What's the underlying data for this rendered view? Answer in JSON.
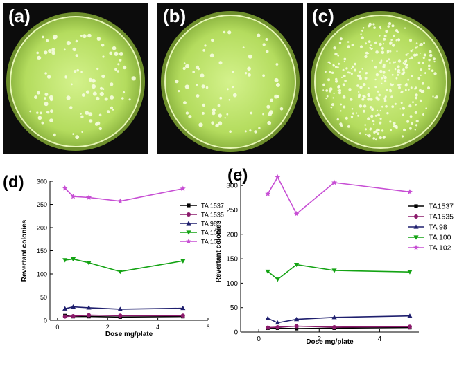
{
  "plates": [
    {
      "label": "(a)",
      "colony_density": "sparse"
    },
    {
      "label": "(b)",
      "colony_density": "sparse"
    },
    {
      "label": "(c)",
      "colony_density": "dense"
    }
  ],
  "chart_data": [
    {
      "panel_label": "(d)",
      "type": "line",
      "title": "",
      "xlabel": "Dose mg/plate",
      "ylabel": "Revertant colonies",
      "xlim": [
        -0.3,
        6
      ],
      "ylim": [
        0,
        300
      ],
      "xticks": [
        0,
        2,
        4,
        6
      ],
      "yticks": [
        0,
        50,
        100,
        150,
        200,
        250,
        300
      ],
      "grid": false,
      "legend_position": "right",
      "x": [
        0.3,
        0.625,
        1.25,
        2.5,
        5
      ],
      "series": [
        {
          "name": "TA 1537",
          "marker": "square",
          "color": "#000000",
          "values": [
            10,
            8,
            8,
            7,
            8
          ]
        },
        {
          "name": "TA 1535",
          "marker": "circle",
          "color": "#8b1a6b",
          "values": [
            8,
            9,
            11,
            10,
            10
          ]
        },
        {
          "name": "TA  98",
          "marker": "triangle-up",
          "color": "#1f1f6e",
          "values": [
            25,
            29,
            27,
            24,
            26
          ]
        },
        {
          "name": "TA  100",
          "marker": "triangle-down",
          "color": "#13a313",
          "values": [
            130,
            132,
            124,
            105,
            128
          ]
        },
        {
          "name": "TA 102",
          "marker": "star",
          "color": "#c74ed4",
          "values": [
            285,
            267,
            265,
            257,
            284
          ]
        }
      ]
    },
    {
      "panel_label": "(e)",
      "type": "line",
      "title": "",
      "xlabel": "Dose mg/plate",
      "ylabel": "Revertant colonies",
      "xlim": [
        -0.6,
        5.3
      ],
      "ylim": [
        0,
        330
      ],
      "xticks": [
        0,
        2,
        4
      ],
      "yticks": [
        0,
        50,
        100,
        150,
        200,
        250,
        300
      ],
      "grid": false,
      "legend_position": "right",
      "x": [
        0.3,
        0.625,
        1.25,
        2.5,
        5
      ],
      "series": [
        {
          "name": "TA1537",
          "marker": "square",
          "color": "#000000",
          "values": [
            8,
            8,
            7,
            8,
            9
          ]
        },
        {
          "name": "TA1535",
          "marker": "circle",
          "color": "#8b1a6b",
          "values": [
            9,
            10,
            12,
            10,
            11
          ]
        },
        {
          "name": "TA 98",
          "marker": "triangle-up",
          "color": "#1f1f6e",
          "values": [
            28,
            19,
            26,
            30,
            33
          ]
        },
        {
          "name": "TA 100",
          "marker": "triangle-down",
          "color": "#13a313",
          "values": [
            124,
            108,
            138,
            126,
            123
          ]
        },
        {
          "name": "TA 102",
          "marker": "star",
          "color": "#c74ed4",
          "values": [
            283,
            317,
            242,
            306,
            287
          ]
        }
      ]
    }
  ]
}
